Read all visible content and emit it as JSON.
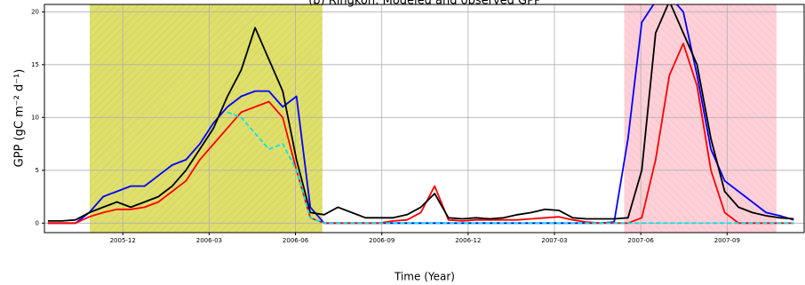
{
  "chart_data": {
    "type": "line",
    "title": "(b) Ringkon: Modeled and observed GPP",
    "x_label": "Time (Year)",
    "y_label": "GPP (gC m⁻² d⁻¹)",
    "x": [
      2005.7,
      2005.74,
      2005.78,
      2005.82,
      2005.86,
      2005.9,
      2005.94,
      2005.98,
      2006.02,
      2006.06,
      2006.1,
      2006.14,
      2006.18,
      2006.22,
      2006.26,
      2006.3,
      2006.34,
      2006.38,
      2006.42,
      2006.46,
      2006.5,
      2006.54,
      2006.58,
      2006.62,
      2006.66,
      2006.7,
      2006.74,
      2006.78,
      2006.82,
      2006.86,
      2006.9,
      2006.94,
      2006.98,
      2007.02,
      2007.06,
      2007.1,
      2007.14,
      2007.18,
      2007.22,
      2007.26,
      2007.3,
      2007.34,
      2007.38,
      2007.42,
      2007.46,
      2007.5,
      2007.54,
      2007.58,
      2007.62,
      2007.66,
      2007.7,
      2007.74,
      2007.78,
      2007.82,
      2007.86
    ],
    "series": [
      {
        "color": "#0000ff",
        "values": [
          0,
          0,
          0,
          1.0,
          2.5,
          3.0,
          3.5,
          3.5,
          4.5,
          5.5,
          6,
          7.5,
          9.5,
          11,
          12,
          12.5,
          12.5,
          11,
          12,
          1.5,
          0,
          0,
          0,
          0,
          0,
          0,
          0,
          0,
          0,
          0,
          0,
          0,
          0,
          0,
          0,
          0,
          0,
          0,
          0,
          0,
          0,
          0.1,
          8,
          19,
          21,
          21.5,
          20,
          14,
          7,
          4,
          3,
          2,
          1.0,
          0.7,
          0.3
        ]
      },
      {
        "color": "#ff0000",
        "values": [
          0,
          0,
          0,
          0.6,
          1.0,
          1.3,
          1.3,
          1.5,
          2,
          3,
          4,
          6,
          7.5,
          9,
          10.5,
          11,
          11.5,
          10,
          5,
          0.5,
          0,
          0,
          0,
          0,
          0,
          0.2,
          0.3,
          1.0,
          3.5,
          0.3,
          0.2,
          0.3,
          0.3,
          0.3,
          0.3,
          0.4,
          0.5,
          0.6,
          0.3,
          0.1,
          0,
          0,
          0,
          0.5,
          6,
          14,
          17,
          13,
          5,
          1,
          0,
          0,
          0,
          0,
          0
        ]
      },
      {
        "color": "#000000",
        "values": [
          0.2,
          0.2,
          0.3,
          1.0,
          1.5,
          2.0,
          1.5,
          2.0,
          2.5,
          3.5,
          5,
          7,
          9,
          12,
          14.5,
          18.5,
          15.5,
          12.5,
          6,
          1.0,
          0.8,
          1.5,
          1.0,
          0.5,
          0.5,
          0.5,
          0.8,
          1.5,
          2.8,
          0.5,
          0.4,
          0.5,
          0.4,
          0.5,
          0.8,
          1.0,
          1.3,
          1.2,
          0.5,
          0.4,
          0.4,
          0.4,
          0.5,
          5,
          18,
          21,
          18,
          15,
          8,
          3,
          1.5,
          1.0,
          0.7,
          0.5,
          0.4
        ]
      },
      {
        "color": "#00e5ee",
        "dashed": true,
        "values": [
          null,
          null,
          null,
          null,
          null,
          null,
          null,
          null,
          null,
          null,
          null,
          null,
          null,
          10.5,
          10,
          8.5,
          7,
          7.5,
          5,
          0.5,
          0,
          0,
          0,
          0,
          0,
          0,
          0,
          0,
          0,
          0,
          0,
          0,
          0,
          0,
          0,
          0,
          0,
          0,
          0,
          0,
          0,
          0,
          0,
          0,
          0,
          0,
          0,
          0,
          0,
          0,
          0,
          0,
          0,
          0,
          0
        ]
      }
    ],
    "spans": [
      {
        "xlim": [
          2005.821,
          2006.495
        ],
        "color": "#d4d43c"
      },
      {
        "xlim": [
          2007.369,
          2007.81
        ],
        "color": "#ffc0cb"
      }
    ],
    "xlim": [
      2005.69,
      2007.89
    ],
    "ylim": [
      -0.9,
      20.7
    ],
    "xticks": [
      {
        "value": 2005.917,
        "label": "2005-12"
      },
      {
        "value": 2006.167,
        "label": "2006-03"
      },
      {
        "value": 2006.417,
        "label": "2006-06"
      },
      {
        "value": 2006.667,
        "label": "2006-09"
      },
      {
        "value": 2006.917,
        "label": "2006-12"
      },
      {
        "value": 2007.167,
        "label": "2007-03"
      },
      {
        "value": 2007.417,
        "label": "2007-06"
      },
      {
        "value": 2007.667,
        "label": "2007-09"
      }
    ],
    "yticks": [
      0,
      5,
      10,
      15,
      20
    ],
    "grid": true
  }
}
